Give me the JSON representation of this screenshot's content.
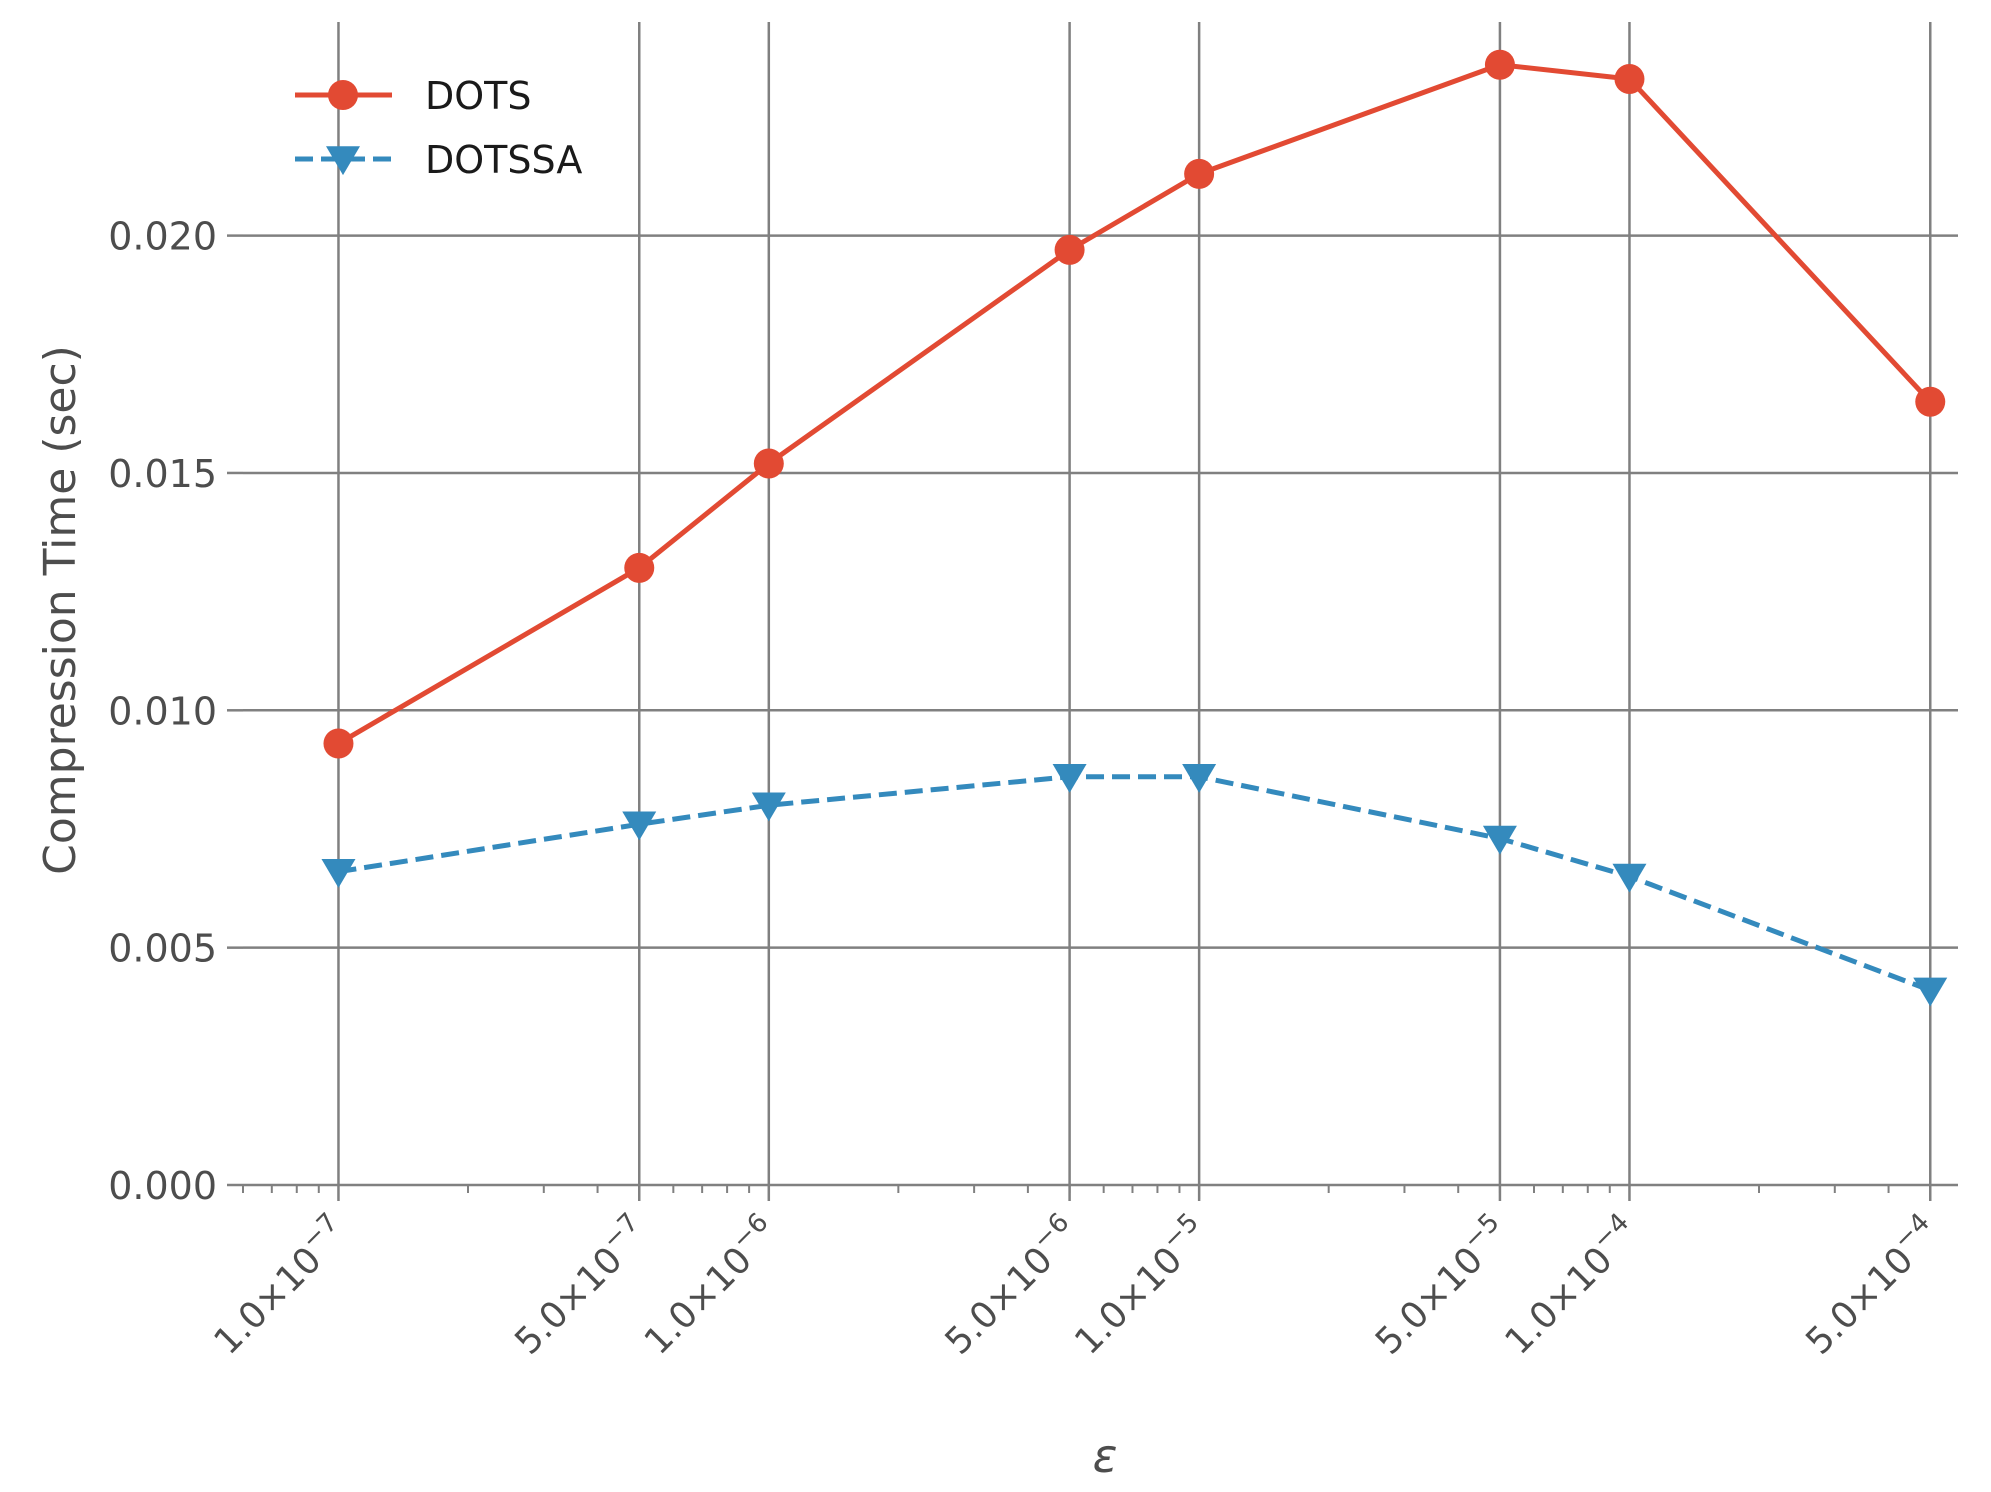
{
  "chart_data": {
    "type": "line",
    "xscale": "log",
    "xlabel": "ε",
    "ylabel": "Compression Time (sec)",
    "xlim": [
      6e-08,
      0.00058
    ],
    "ylim": [
      0,
      0.0245
    ],
    "x": [
      1e-07,
      5e-07,
      1e-06,
      5e-06,
      1e-05,
      5e-05,
      0.0001,
      0.0005
    ],
    "x_tick_labels": [
      {
        "mantissa": "1.0",
        "exponent": "−7"
      },
      {
        "mantissa": "5.0",
        "exponent": "−7"
      },
      {
        "mantissa": "1.0",
        "exponent": "−6"
      },
      {
        "mantissa": "5.0",
        "exponent": "−6"
      },
      {
        "mantissa": "1.0",
        "exponent": "−5"
      },
      {
        "mantissa": "5.0",
        "exponent": "−5"
      },
      {
        "mantissa": "1.0",
        "exponent": "−4"
      },
      {
        "mantissa": "5.0",
        "exponent": "−4"
      }
    ],
    "y_ticks": [
      0.0,
      0.005,
      0.01,
      0.015,
      0.02
    ],
    "y_tick_labels": [
      "0.000",
      "0.005",
      "0.010",
      "0.015",
      "0.020"
    ],
    "grid": true,
    "legend_position": "top-left",
    "series": [
      {
        "name": "DOTS",
        "color": "#e24a33",
        "line_style": "solid",
        "marker": "circle",
        "values": [
          0.0093,
          0.013,
          0.0152,
          0.0197,
          0.0213,
          0.0236,
          0.0233,
          0.0165
        ]
      },
      {
        "name": "DOTSSA",
        "color": "#348abd",
        "line_style": "dashed",
        "marker": "triangle-down",
        "values": [
          0.0066,
          0.0076,
          0.008,
          0.0086,
          0.0086,
          0.0073,
          0.0065,
          0.0041
        ]
      }
    ]
  }
}
